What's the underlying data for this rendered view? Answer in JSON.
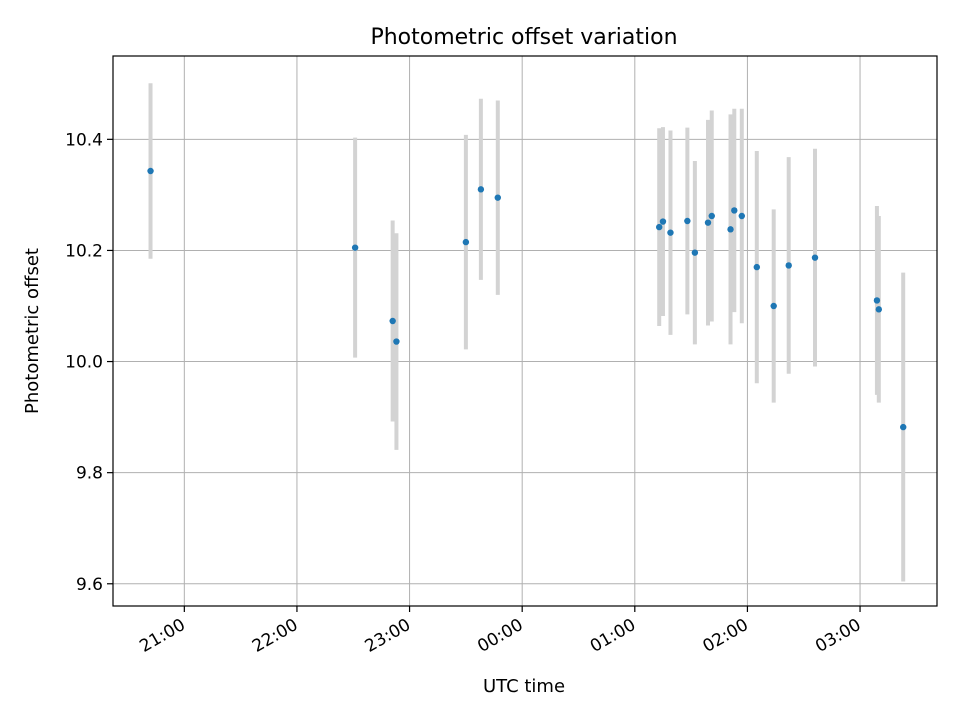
{
  "chart_data": {
    "type": "scatter",
    "title": "Photometric offset variation",
    "xlabel": "UTC time",
    "ylabel": "Photometric offset",
    "x_axis_type": "time",
    "x_tick_labels": [
      "21:00",
      "22:00",
      "23:00",
      "00:00",
      "01:00",
      "02:00",
      "03:00"
    ],
    "x_ticks": [
      "21:00",
      "22:00",
      "23:00",
      "00:00",
      "01:00",
      "02:00",
      "03:00"
    ],
    "xlim": [
      "20:22",
      "03:41"
    ],
    "y_ticks": [
      9.6,
      9.8,
      10.0,
      10.2,
      10.4
    ],
    "y_tick_labels": [
      "9.6",
      "9.8",
      "10.0",
      "10.2",
      "10.4"
    ],
    "ylim": [
      9.56,
      10.55
    ],
    "grid": true,
    "errorbar_color": "#d3d3d3",
    "marker_color": "#1f77b4",
    "points": [
      {
        "x": "20:42",
        "y": 10.343,
        "err": 0.158
      },
      {
        "x": "22:31",
        "y": 10.205,
        "err": 0.198
      },
      {
        "x": "22:51",
        "y": 10.073,
        "err": 0.181
      },
      {
        "x": "22:53",
        "y": 10.036,
        "err": 0.195
      },
      {
        "x": "23:30",
        "y": 10.215,
        "err": 0.193
      },
      {
        "x": "23:38",
        "y": 10.31,
        "err": 0.163
      },
      {
        "x": "23:47",
        "y": 10.295,
        "err": 0.175
      },
      {
        "x": "01:13",
        "y": 10.242,
        "err": 0.178
      },
      {
        "x": "01:15",
        "y": 10.252,
        "err": 0.17
      },
      {
        "x": "01:19",
        "y": 10.232,
        "err": 0.184
      },
      {
        "x": "01:28",
        "y": 10.253,
        "err": 0.168
      },
      {
        "x": "01:32",
        "y": 10.196,
        "err": 0.165
      },
      {
        "x": "01:39",
        "y": 10.25,
        "err": 0.185
      },
      {
        "x": "01:41",
        "y": 10.262,
        "err": 0.19
      },
      {
        "x": "01:51",
        "y": 10.238,
        "err": 0.207
      },
      {
        "x": "01:53",
        "y": 10.272,
        "err": 0.183
      },
      {
        "x": "01:57",
        "y": 10.262,
        "err": 0.193
      },
      {
        "x": "02:05",
        "y": 10.17,
        "err": 0.209
      },
      {
        "x": "02:14",
        "y": 10.1,
        "err": 0.174
      },
      {
        "x": "02:22",
        "y": 10.173,
        "err": 0.195
      },
      {
        "x": "02:36",
        "y": 10.187,
        "err": 0.196
      },
      {
        "x": "03:09",
        "y": 10.11,
        "err": 0.17
      },
      {
        "x": "03:10",
        "y": 10.094,
        "err": 0.168
      },
      {
        "x": "03:23",
        "y": 9.882,
        "err": 0.278
      }
    ]
  }
}
